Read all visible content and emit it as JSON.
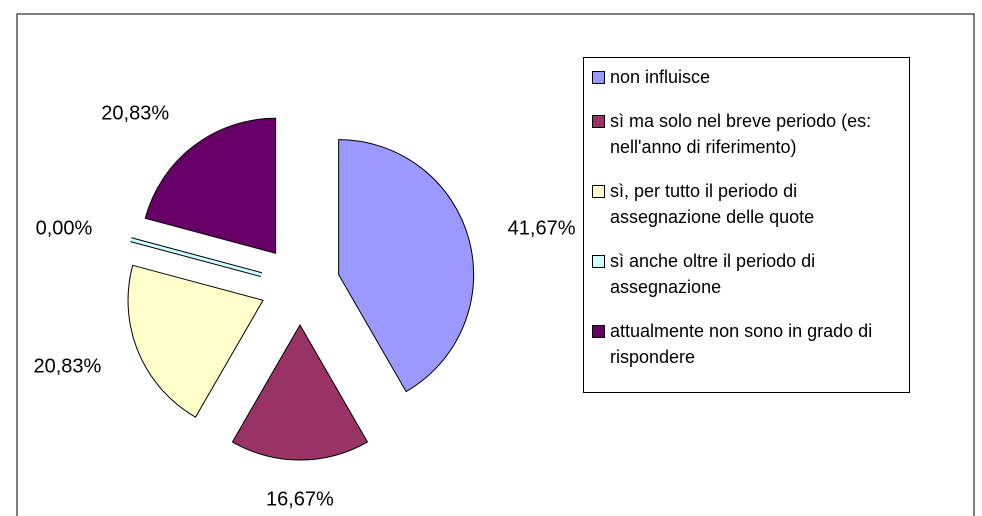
{
  "chart_data": {
    "type": "pie",
    "categories": [
      "non influisce",
      "sì ma solo nel breve periodo (es: nell'anno di riferimento)",
      "sì, per tutto il periodo di assegnazione delle quote",
      "sì anche oltre il periodo di assegnazione",
      "attualmente non sono in grado di rispondere"
    ],
    "values": [
      41.67,
      16.67,
      20.83,
      0.0,
      20.83
    ],
    "value_labels": [
      "41,67%",
      "16,67%",
      "20,83%",
      "0,00%",
      "20,83%"
    ],
    "colors": [
      "#9999ff",
      "#993366",
      "#ffffcc",
      "#ccffff",
      "#660066"
    ],
    "legend": "right"
  }
}
